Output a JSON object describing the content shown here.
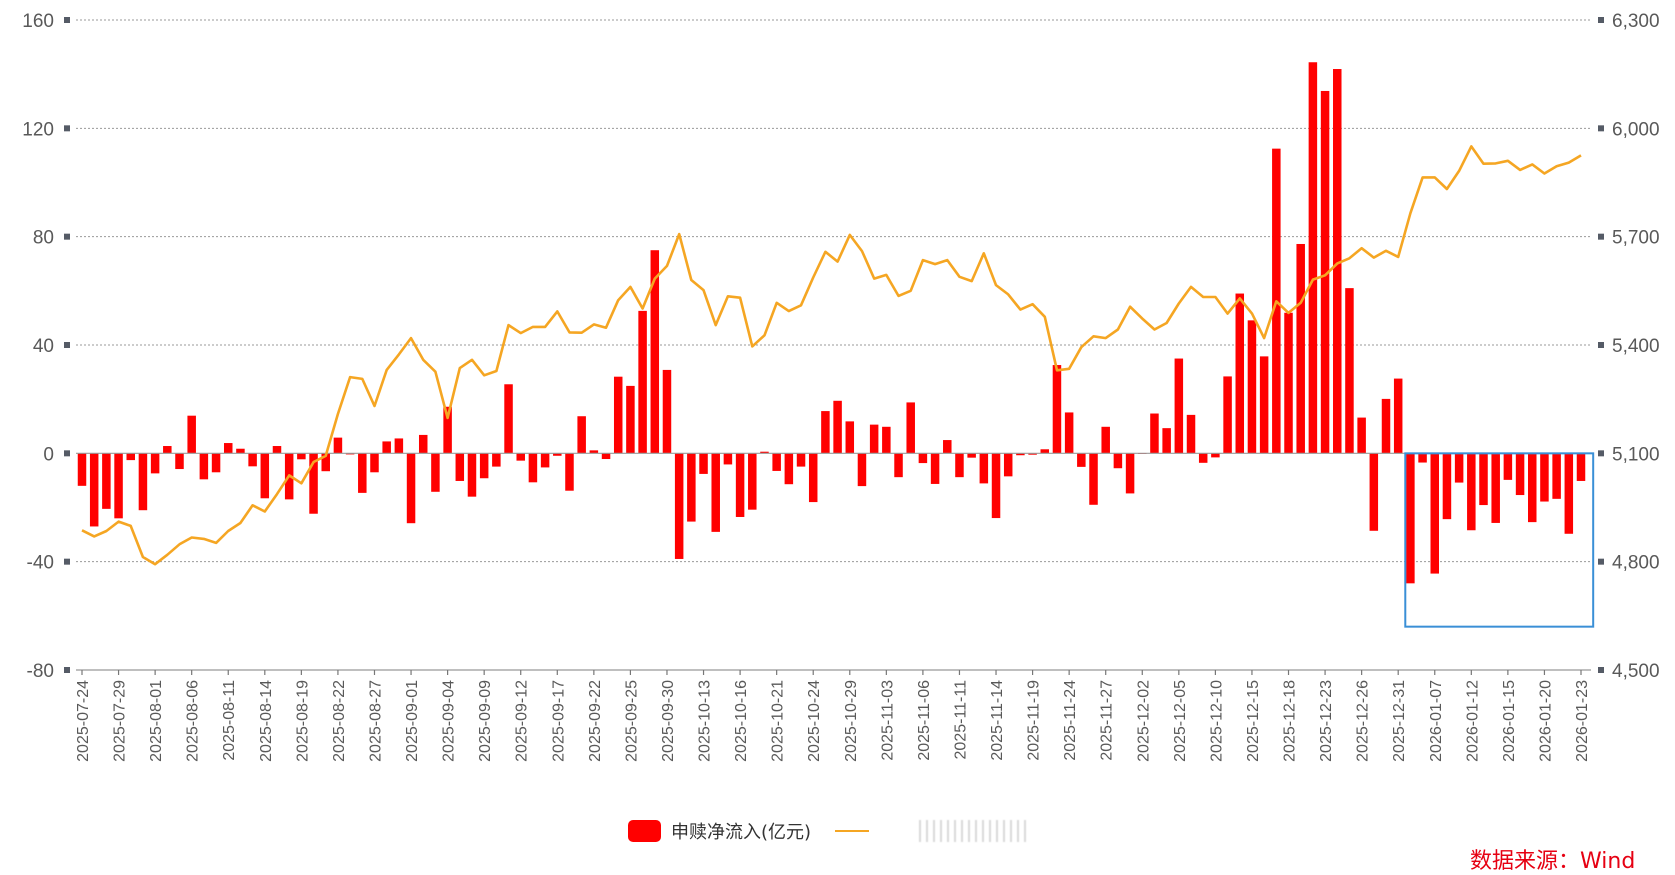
{
  "chart_data": {
    "type": "bar+line",
    "title": "",
    "xlabel": "",
    "ylabel_left": "",
    "ylabel_right": "",
    "ylim_left": [
      -80,
      160
    ],
    "ylim_right": [
      4500,
      6300
    ],
    "yticks_left": [
      160,
      120,
      80,
      40,
      0,
      -40,
      -80
    ],
    "yticks_right": [
      "6,300",
      "6,000",
      "5,700",
      "5,400",
      "5,100",
      "4,800",
      "4,500"
    ],
    "grid": "horizontal dotted",
    "legend_position": "bottom-center",
    "x": [
      "2025-07-24",
      "2025-07-25",
      "2025-07-28",
      "2025-07-29",
      "2025-07-30",
      "2025-07-31",
      "2025-08-01",
      "2025-08-04",
      "2025-08-05",
      "2025-08-06",
      "2025-08-07",
      "2025-08-08",
      "2025-08-11",
      "2025-08-12",
      "2025-08-13",
      "2025-08-14",
      "2025-08-15",
      "2025-08-18",
      "2025-08-19",
      "2025-08-20",
      "2025-08-21",
      "2025-08-22",
      "2025-08-25",
      "2025-08-26",
      "2025-08-27",
      "2025-08-28",
      "2025-08-29",
      "2025-09-01",
      "2025-09-02",
      "2025-09-03",
      "2025-09-04",
      "2025-09-05",
      "2025-09-08",
      "2025-09-09",
      "2025-09-10",
      "2025-09-11",
      "2025-09-12",
      "2025-09-15",
      "2025-09-16",
      "2025-09-17",
      "2025-09-18",
      "2025-09-19",
      "2025-09-22",
      "2025-09-23",
      "2025-09-24",
      "2025-09-25",
      "2025-09-26",
      "2025-09-29",
      "2025-09-30",
      "2025-10-09",
      "2025-10-10",
      "2025-10-13",
      "2025-10-14",
      "2025-10-15",
      "2025-10-16",
      "2025-10-17",
      "2025-10-20",
      "2025-10-21",
      "2025-10-22",
      "2025-10-23",
      "2025-10-24",
      "2025-10-27",
      "2025-10-28",
      "2025-10-29",
      "2025-10-30",
      "2025-10-31",
      "2025-11-03",
      "2025-11-04",
      "2025-11-05",
      "2025-11-06",
      "2025-11-07",
      "2025-11-10",
      "2025-11-11",
      "2025-11-12",
      "2025-11-13",
      "2025-11-14",
      "2025-11-17",
      "2025-11-18",
      "2025-11-19",
      "2025-11-20",
      "2025-11-21",
      "2025-11-24",
      "2025-11-25",
      "2025-11-26",
      "2025-11-27",
      "2025-11-28",
      "2025-12-01",
      "2025-12-02",
      "2025-12-03",
      "2025-12-04",
      "2025-12-05",
      "2025-12-08",
      "2025-12-09",
      "2025-12-10",
      "2025-12-11",
      "2025-12-12",
      "2025-12-15",
      "2025-12-16",
      "2025-12-17",
      "2025-12-18",
      "2025-12-19",
      "2025-12-22",
      "2025-12-23",
      "2025-12-24",
      "2025-12-25",
      "2025-12-26",
      "2025-12-29",
      "2025-12-30",
      "2025-12-31",
      "2026-01-05",
      "2026-01-06",
      "2026-01-07",
      "2026-01-08",
      "2026-01-09",
      "2026-01-12",
      "2026-01-13",
      "2026-01-14",
      "2026-01-15",
      "2026-01-16",
      "2026-01-19",
      "2026-01-20",
      "2026-01-21",
      "2026-01-22",
      "2026-01-23"
    ],
    "x_tick_labels": [
      "2025-07-24",
      "2025-07-29",
      "2025-08-01",
      "2025-08-06",
      "2025-08-11",
      "2025-08-14",
      "2025-08-19",
      "2025-08-22",
      "2025-08-27",
      "2025-09-01",
      "2025-09-04",
      "2025-09-09",
      "2025-09-12",
      "2025-09-17",
      "2025-09-22",
      "2025-09-25",
      "2025-09-30",
      "2025-10-13",
      "2025-10-16",
      "2025-10-21",
      "2025-10-24",
      "2025-10-29",
      "2025-11-03",
      "2025-11-06",
      "2025-11-11",
      "2025-11-14",
      "2025-11-19",
      "2025-11-24",
      "2025-11-27",
      "2025-12-02",
      "2025-12-05",
      "2025-12-10",
      "2025-12-15",
      "2025-12-18",
      "2025-12-23",
      "2025-12-26",
      "2025-12-31",
      "2026-01-07",
      "2026-01-12",
      "2026-01-15",
      "2026-01-20",
      "2026-01-23"
    ],
    "series": [
      {
        "name": "申赎净流入(亿元)",
        "type": "bar",
        "axis": "left",
        "color": "#ff0000",
        "values": [
          -12,
          -27,
          -20.5,
          -24,
          -2.5,
          -21,
          -7.4,
          2.7,
          -5.8,
          13.9,
          -9.6,
          -7,
          3.8,
          1.7,
          -4.8,
          -16.6,
          2.7,
          -17,
          -2.2,
          -22.3,
          -6.6,
          5.8,
          -0.4,
          -14.6,
          -7,
          4.4,
          5.5,
          -25.8,
          6.8,
          -14.2,
          17.2,
          -10.2,
          -16,
          -9.2,
          -4.9,
          25.5,
          -2.7,
          -10.7,
          -5.2,
          -0.9,
          -13.8,
          13.7,
          1.1,
          -2.1,
          28.3,
          24.9,
          52.6,
          75,
          30.8,
          -39,
          -25.2,
          -7.6,
          -29,
          -4.1,
          -23.5,
          -20.8,
          0.6,
          -6.5,
          -11.4,
          -4.9,
          -18,
          15.6,
          19.4,
          11.8,
          -12.1,
          10.6,
          9.8,
          -8.8,
          18.8,
          -3.6,
          -11.3,
          4.9,
          -8.8,
          -1.6,
          -11.1,
          -23.9,
          -8.5,
          -0.7,
          -0.5,
          1.5,
          32.6,
          15.1,
          -5,
          -19,
          9.8,
          -5.5,
          -14.8,
          0,
          14.7,
          9.3,
          35,
          14.2,
          -3.5,
          -1.5,
          28.4,
          59,
          49.1,
          35.8,
          112.5,
          51.9,
          77.3,
          144.4,
          133.8,
          141.9,
          61,
          13.2,
          -28.6,
          20.1,
          27.6,
          -48,
          -3.4,
          -44.4,
          -24.3,
          -10.8,
          -28.4,
          -19.1,
          -25.7,
          -9.8,
          -15.4,
          -25.4,
          -17.8,
          -16.8,
          -29.7,
          -10.2
        ]
      },
      {
        "name": "(obscured)",
        "type": "line",
        "axis": "right",
        "color": "#f5a623",
        "values": [
          4887,
          4870,
          4885,
          4911,
          4899,
          4813,
          4793,
          4819,
          4848,
          4867,
          4863,
          4852,
          4885,
          4907,
          4956,
          4939,
          4987,
          5039,
          5017,
          5076,
          5093,
          5209,
          5311,
          5306,
          5231,
          5331,
          5374,
          5419,
          5359,
          5326,
          5198,
          5336,
          5359,
          5316,
          5328,
          5455,
          5433,
          5450,
          5450,
          5493,
          5435,
          5434,
          5457,
          5448,
          5524,
          5561,
          5501,
          5584,
          5619,
          5707,
          5580,
          5552,
          5455,
          5535,
          5531,
          5396,
          5427,
          5517,
          5494,
          5510,
          5587,
          5658,
          5631,
          5705,
          5660,
          5584,
          5594,
          5536,
          5550,
          5635,
          5624,
          5635,
          5589,
          5577,
          5654,
          5566,
          5540,
          5498,
          5513,
          5478,
          5330,
          5334,
          5394,
          5424,
          5419,
          5443,
          5506,
          5473,
          5443,
          5461,
          5515,
          5561,
          5533,
          5533,
          5487,
          5529,
          5487,
          5419,
          5521,
          5489,
          5517,
          5581,
          5593,
          5626,
          5640,
          5668,
          5642,
          5661,
          5644,
          5765,
          5864,
          5864,
          5832,
          5882,
          5950,
          5902,
          5903,
          5910,
          5885,
          5900,
          5875,
          5895,
          5905,
          5925
        ]
      }
    ],
    "annotations": [
      {
        "type": "rectangle",
        "color": "#3a8fd6",
        "from": "2025-12-31",
        "to": "2026-01-23",
        "y_range": [
          -64,
          0
        ]
      }
    ]
  },
  "legend": {
    "bar_label": "申赎净流入(亿元)",
    "line_label": ""
  },
  "source_text": "数据来源：Wind"
}
